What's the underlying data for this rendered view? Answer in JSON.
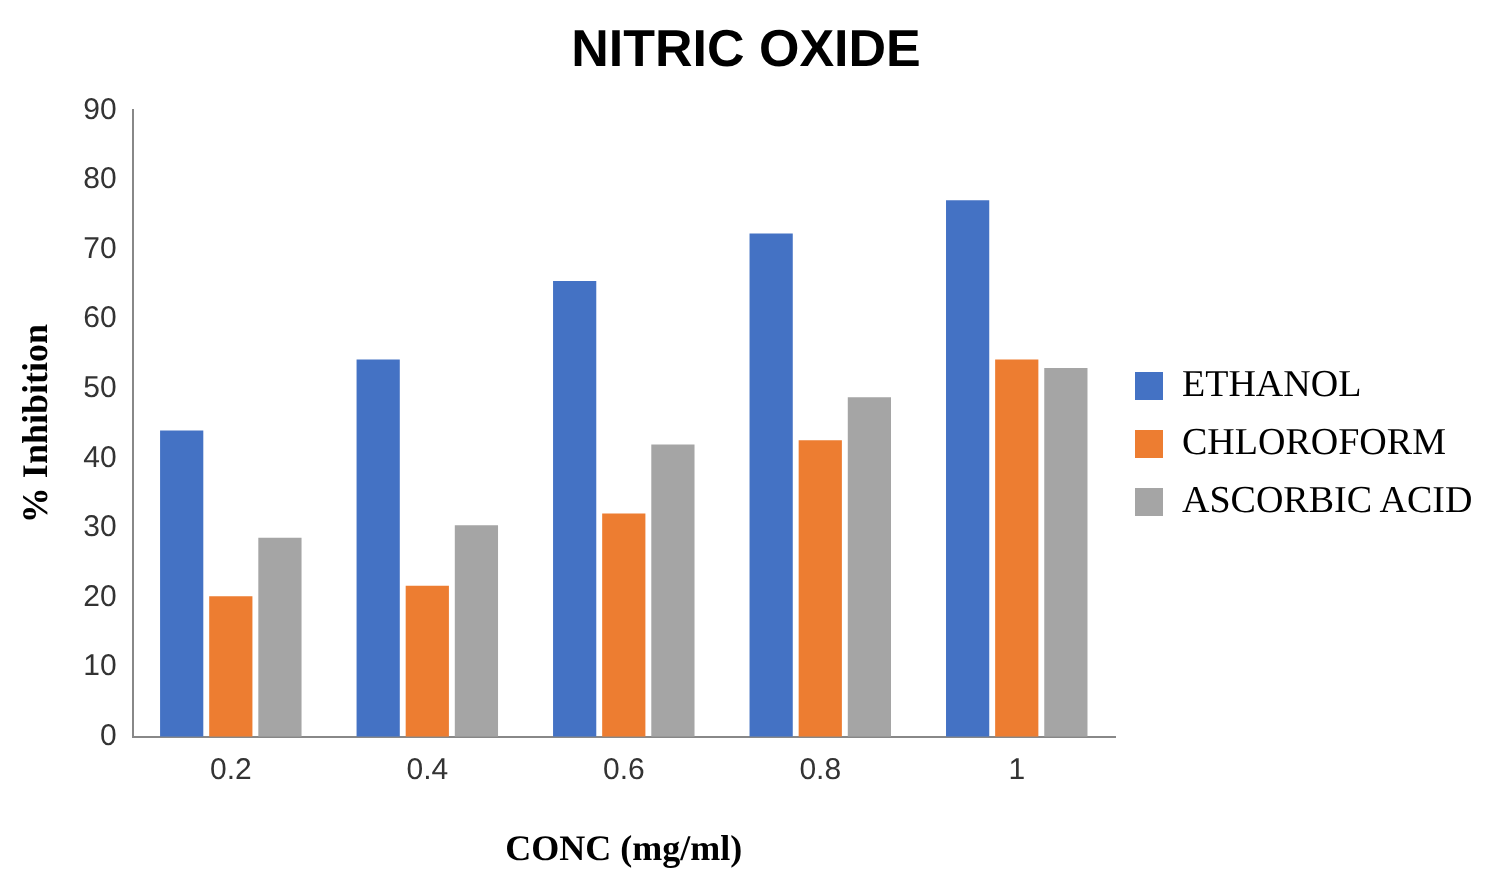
{
  "chart_data": {
    "type": "bar",
    "title": "NITRIC OXIDE",
    "xlabel": "CONC (mg/ml)",
    "ylabel": "% Inhibition",
    "categories": [
      "0.2",
      "0.4",
      "0.6",
      "0.8",
      "1"
    ],
    "series": [
      {
        "name": "ETHANOL",
        "color": "#4472c4",
        "values": [
          44,
          54.2,
          65.5,
          72.3,
          77.1
        ]
      },
      {
        "name": "CHLOROFORM",
        "color": "#ed7d31",
        "values": [
          20.2,
          21.7,
          32.1,
          42.6,
          54.2
        ]
      },
      {
        "name": "ASCORBIC ACID",
        "color": "#a5a5a5",
        "values": [
          28.6,
          30.4,
          42,
          48.8,
          53
        ]
      }
    ],
    "ylim": [
      0,
      90
    ],
    "yticks": [
      0,
      10,
      20,
      30,
      40,
      50,
      60,
      70,
      80,
      90
    ],
    "grid": false,
    "legend": "right"
  }
}
